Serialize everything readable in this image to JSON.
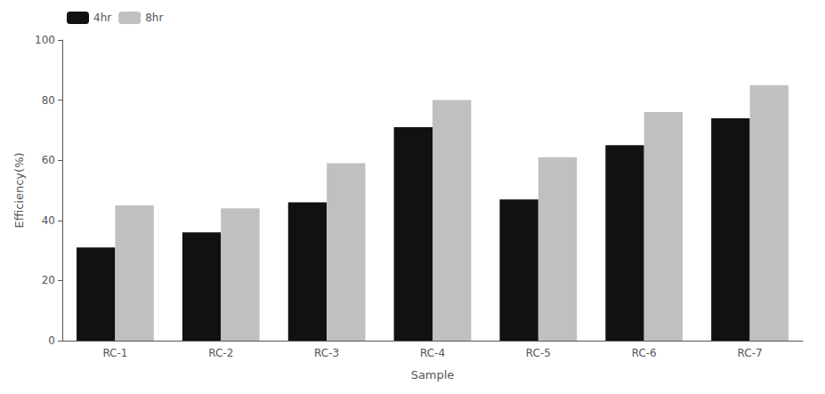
{
  "chart_data": {
    "type": "bar",
    "xlabel": "Sample",
    "ylabel": "Efficiency(%)",
    "categories": [
      "RC-1",
      "RC-2",
      "RC-3",
      "RC-4",
      "RC-5",
      "RC-6",
      "RC-7"
    ],
    "series": [
      {
        "name": "4hr",
        "color": "#111111",
        "values": [
          31,
          36,
          46,
          71,
          47,
          65,
          74
        ]
      },
      {
        "name": "8hr",
        "color": "#c0c0c0",
        "values": [
          45,
          44,
          59,
          80,
          61,
          76,
          85
        ]
      }
    ],
    "ylim": [
      0,
      100
    ],
    "yticks": [
      0,
      20,
      40,
      60,
      80,
      100
    ],
    "grid": false,
    "legend": "upper left"
  }
}
